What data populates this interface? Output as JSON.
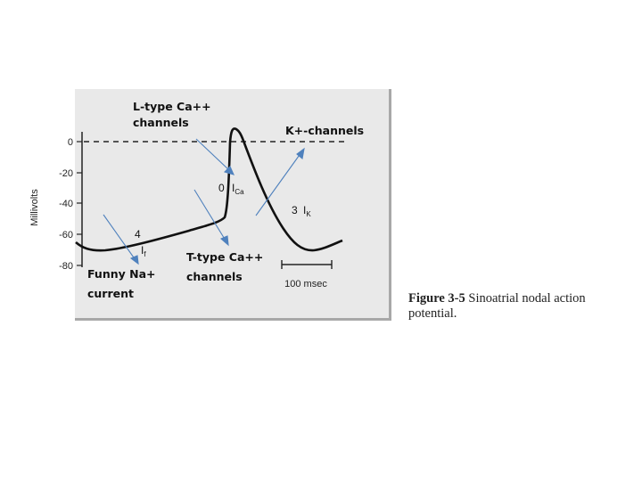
{
  "figure": {
    "caption_label": "Figure 3-5",
    "caption_text": "Sinoatrial nodal action potential."
  },
  "y_axis": {
    "label": "Millivolts",
    "ticks": [
      "0",
      "-20",
      "-40",
      "-60",
      "-80"
    ]
  },
  "scale_bar": {
    "label": "100 msec"
  },
  "phase_labels": {
    "phase4": "4",
    "phase0": "0",
    "phase3": "3",
    "if_main": "I",
    "if_sub": "f",
    "ica_main": "I",
    "ica_sub": "Ca",
    "ik_main": "I",
    "ik_sub": "K"
  },
  "annotations": {
    "l_type_line1": "L-type Ca++",
    "l_type_line2": "channels",
    "k_channels": "K+-channels",
    "t_type_line1": "T-type Ca++",
    "t_type_line2": "channels",
    "funny_line1": "Funny Na+",
    "funny_line2": "current"
  },
  "colors": {
    "arrow": "#4f81bd",
    "trace": "#111111"
  }
}
